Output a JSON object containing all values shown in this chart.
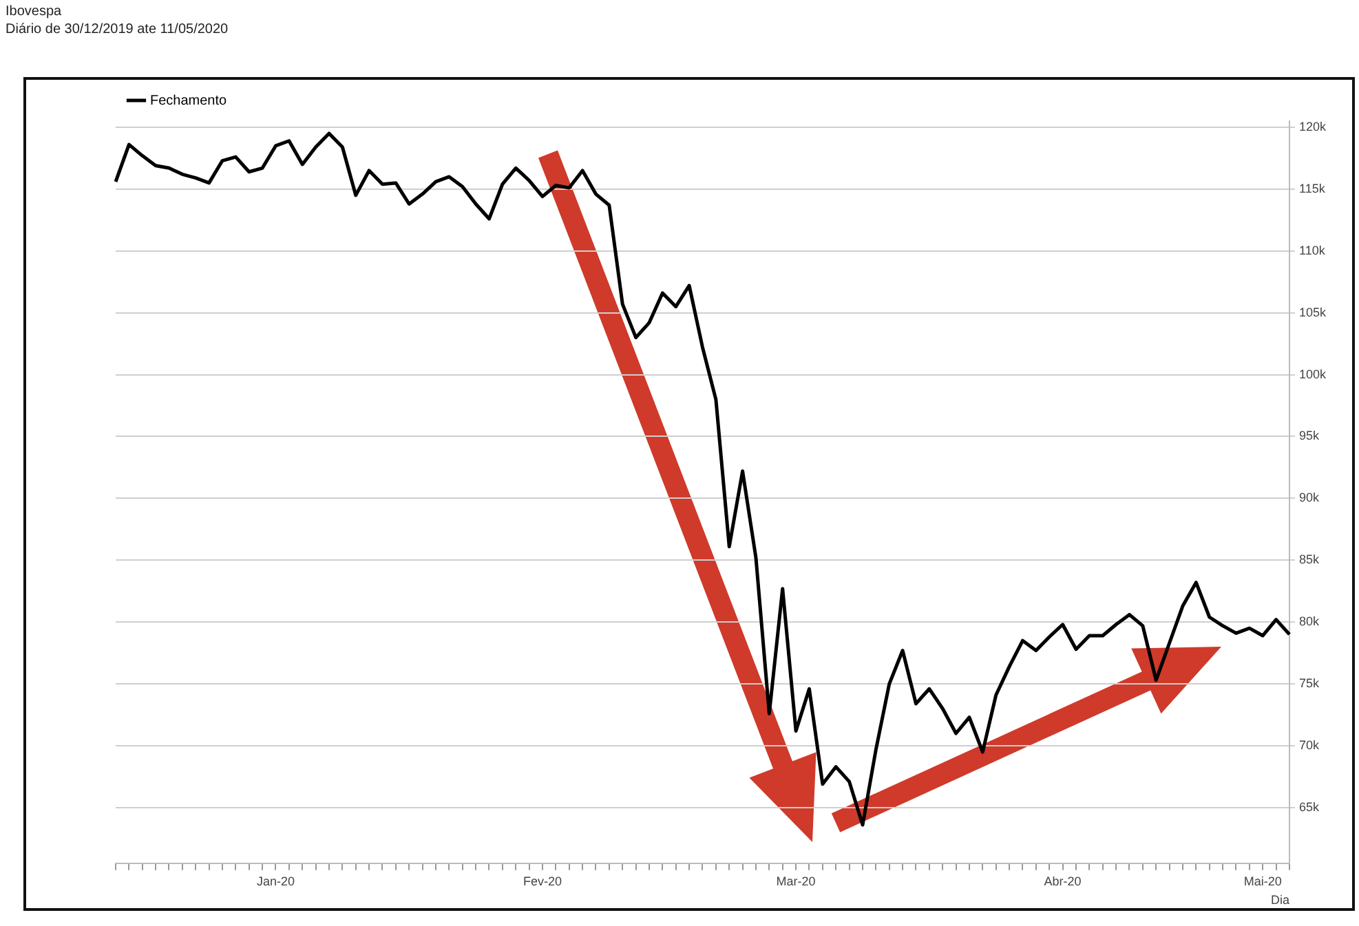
{
  "chart_data": {
    "type": "line",
    "title": "Ibovespa",
    "subtitle": "Diário de 30/12/2019 ate 11/05/2020",
    "xlabel": "Dia",
    "categories": [
      null,
      null,
      null,
      null,
      null,
      null,
      null,
      null,
      null,
      null,
      null,
      null,
      "Jan-20",
      null,
      null,
      null,
      null,
      null,
      null,
      null,
      null,
      null,
      null,
      null,
      null,
      null,
      null,
      null,
      null,
      null,
      null,
      null,
      "Fev-20",
      null,
      null,
      null,
      null,
      null,
      null,
      null,
      null,
      null,
      null,
      null,
      null,
      null,
      null,
      null,
      null,
      null,
      null,
      "Mar-20",
      null,
      null,
      null,
      null,
      null,
      null,
      null,
      null,
      null,
      null,
      null,
      null,
      null,
      null,
      null,
      null,
      null,
      null,
      null,
      "Abr-20",
      null,
      null,
      null,
      null,
      null,
      null,
      null,
      null,
      null,
      null,
      null,
      null,
      null,
      null,
      "Mai-20",
      null,
      null
    ],
    "series": [
      {
        "name": "Fechamento",
        "color": "#000000",
        "values": [
          115.6,
          118.6,
          117.7,
          116.9,
          116.7,
          116.2,
          115.9,
          115.5,
          117.3,
          117.6,
          116.4,
          116.7,
          118.5,
          118.9,
          117.0,
          118.4,
          119.5,
          118.4,
          114.5,
          116.5,
          115.4,
          115.5,
          113.8,
          114.6,
          115.6,
          116.0,
          115.2,
          113.8,
          112.6,
          115.4,
          116.7,
          115.7,
          114.4,
          115.3,
          115.1,
          116.5,
          114.6,
          113.7,
          105.7,
          103.0,
          104.2,
          106.6,
          105.5,
          107.2,
          102.2,
          98.0,
          86.1,
          92.2,
          85.2,
          72.6,
          82.7,
          71.2,
          74.6,
          66.9,
          68.3,
          67.1,
          63.6,
          69.7,
          75.0,
          77.7,
          73.4,
          74.6,
          73.0,
          71.0,
          72.3,
          69.5,
          74.1,
          76.4,
          78.5,
          77.7,
          78.8,
          79.8,
          77.8,
          78.9,
          78.9,
          79.8,
          80.6,
          79.7,
          75.3,
          78.3,
          81.3,
          83.2,
          80.4,
          79.7,
          79.1,
          79.5,
          78.9,
          80.2,
          79.0
        ]
      }
    ],
    "ylim": [
      60.5,
      120.5
    ],
    "yticks": [
      {
        "value": 65,
        "label": "65k"
      },
      {
        "value": 70,
        "label": "70k"
      },
      {
        "value": 75,
        "label": "75k"
      },
      {
        "value": 80,
        "label": "80k"
      },
      {
        "value": 85,
        "label": "85k"
      },
      {
        "value": 90,
        "label": "90k"
      },
      {
        "value": 95,
        "label": "95k"
      },
      {
        "value": 100,
        "label": "100k"
      },
      {
        "value": 105,
        "label": "105k"
      },
      {
        "value": 110,
        "label": "110k"
      },
      {
        "value": 115,
        "label": "115k"
      },
      {
        "value": 120,
        "label": "120k"
      }
    ],
    "grid": "y",
    "legend": "top left",
    "marker": "none",
    "line_style": "solid"
  }
}
